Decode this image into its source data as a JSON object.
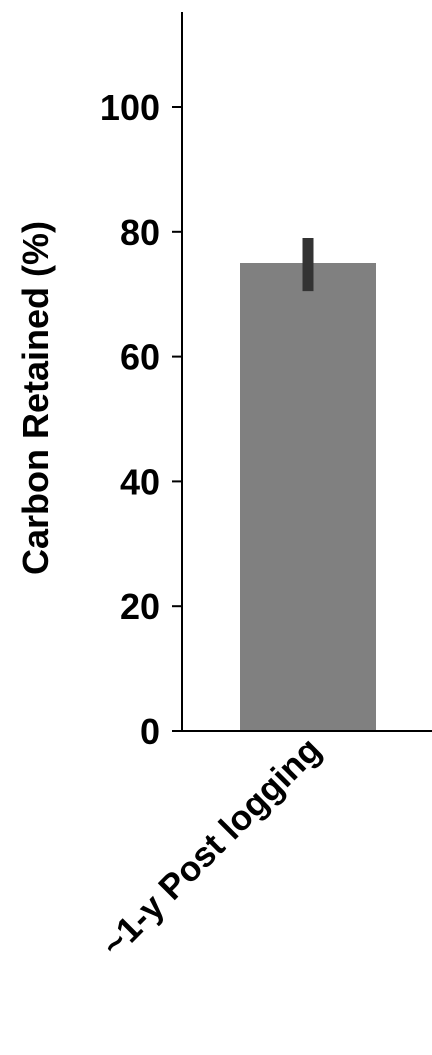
{
  "chart_data": {
    "type": "bar",
    "title": "",
    "xlabel": "",
    "ylabel": "Carbon Retained (%)",
    "categories": [
      "~1-y Post logging"
    ],
    "values": [
      75
    ],
    "error_low": [
      70.5
    ],
    "error_high": [
      79
    ],
    "ylim": [
      0,
      115
    ],
    "yticks": [
      0,
      20,
      40,
      60,
      80,
      100
    ],
    "grid": false,
    "legend": "none",
    "colors": {
      "bar": "#808080",
      "error_bar": "#333333",
      "axis": "#000000",
      "text": "#000000"
    }
  }
}
